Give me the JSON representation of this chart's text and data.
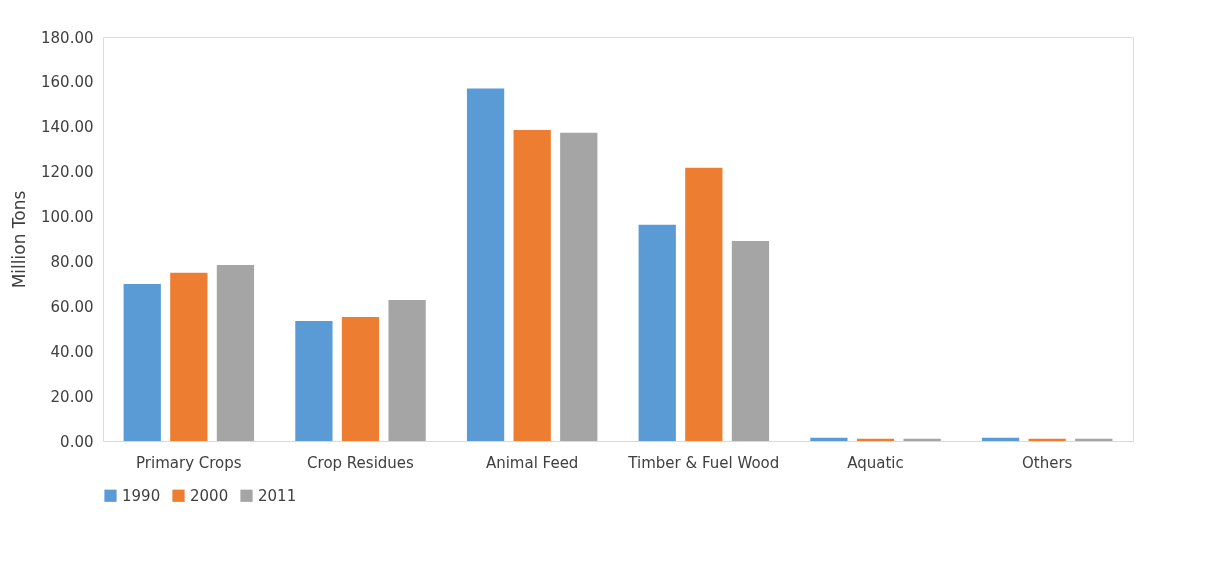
{
  "chart_data": {
    "type": "bar",
    "ylabel": "Million Tons",
    "categories": [
      "Primary Crops",
      "Crop Residues",
      "Animal Feed",
      "Timber & Fuel Wood",
      "Aquatic",
      "Others"
    ],
    "series": [
      {
        "name": "1990",
        "color": "#5b9bd5",
        "values": [
          70.0,
          53.5,
          157.0,
          96.3,
          1.5,
          1.5
        ]
      },
      {
        "name": "2000",
        "color": "#ed7d31",
        "values": [
          75.0,
          55.3,
          138.6,
          121.7,
          1.0,
          1.0
        ]
      },
      {
        "name": "2011",
        "color": "#a5a5a5",
        "values": [
          78.4,
          62.8,
          137.3,
          89.1,
          1.0,
          1.0
        ]
      }
    ],
    "ylim": [
      0,
      180
    ],
    "yticks": [
      {
        "value": 0,
        "label": "0.00"
      },
      {
        "value": 20,
        "label": "20.00"
      },
      {
        "value": 40,
        "label": "40.00"
      },
      {
        "value": 60,
        "label": "60.00"
      },
      {
        "value": 80,
        "label": "80.00"
      },
      {
        "value": 100,
        "label": "100.00"
      },
      {
        "value": 120,
        "label": "120.00"
      },
      {
        "value": 140,
        "label": "140.00"
      },
      {
        "value": 160,
        "label": "160.00"
      },
      {
        "value": 180,
        "label": "180.00"
      }
    ],
    "grid": false,
    "legend": "bottom"
  }
}
